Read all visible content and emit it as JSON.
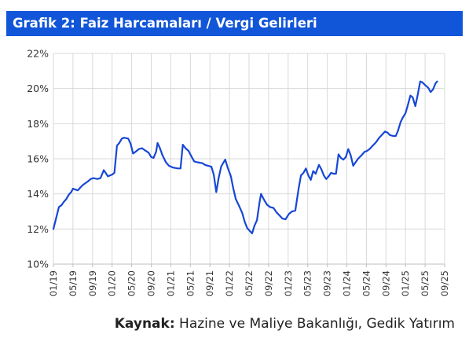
{
  "header": {
    "title": "Grafik 2: Faiz Harcamaları / Vergi Gelirleri"
  },
  "source": {
    "label": "Kaynak:",
    "text": "Hazine ve Maliye Bakanlığı, Gedik Yatırım"
  },
  "colors": {
    "header_bg": "#1155d8",
    "line": "#1747d6",
    "grid": "#d9d9d9",
    "axis": "#bfbfbf",
    "text": "#333333"
  },
  "chart_data": {
    "type": "line",
    "title": "",
    "xlabel": "",
    "ylabel": "",
    "y_unit": "%",
    "ylim": [
      10,
      22
    ],
    "grid": true,
    "y_ticks": [
      "22%",
      "20%",
      "18%",
      "16%",
      "14%",
      "12%",
      "10%"
    ],
    "x_ticks": [
      "01/19",
      "05/19",
      "09/19",
      "01/20",
      "05/20",
      "09/20",
      "01/21",
      "05/21",
      "09/21",
      "01/22",
      "05/22",
      "09/22",
      "01/23",
      "05/23",
      "09/23",
      "01/24",
      "05/24",
      "09/24",
      "01/25",
      "05/25",
      "09/25"
    ],
    "x_start": "2019-01",
    "x_end": "2025-09",
    "series": [
      {
        "name": "",
        "points": [
          [
            "2019-01-01",
            12.0
          ],
          [
            "2019-01-20",
            12.7
          ],
          [
            "2019-02-05",
            13.25
          ],
          [
            "2019-02-20",
            13.35
          ],
          [
            "2019-03-05",
            13.55
          ],
          [
            "2019-03-20",
            13.7
          ],
          [
            "2019-04-05",
            13.95
          ],
          [
            "2019-04-20",
            14.1
          ],
          [
            "2019-05-01",
            14.3
          ],
          [
            "2019-05-15",
            14.25
          ],
          [
            "2019-06-01",
            14.2
          ],
          [
            "2019-06-15",
            14.35
          ],
          [
            "2019-07-01",
            14.5
          ],
          [
            "2019-08-01",
            14.7
          ],
          [
            "2019-08-20",
            14.85
          ],
          [
            "2019-09-05",
            14.9
          ],
          [
            "2019-10-01",
            14.85
          ],
          [
            "2019-10-20",
            14.9
          ],
          [
            "2019-11-10",
            15.35
          ],
          [
            "2019-11-25",
            15.15
          ],
          [
            "2019-12-05",
            15.0
          ],
          [
            "2020-01-01",
            15.1
          ],
          [
            "2020-01-15",
            15.2
          ],
          [
            "2020-02-01",
            16.75
          ],
          [
            "2020-02-15",
            16.9
          ],
          [
            "2020-03-01",
            17.15
          ],
          [
            "2020-03-15",
            17.2
          ],
          [
            "2020-04-10",
            17.15
          ],
          [
            "2020-04-25",
            16.85
          ],
          [
            "2020-05-10",
            16.3
          ],
          [
            "2020-05-25",
            16.4
          ],
          [
            "2020-06-15",
            16.55
          ],
          [
            "2020-07-05",
            16.6
          ],
          [
            "2020-07-20",
            16.5
          ],
          [
            "2020-08-15",
            16.35
          ],
          [
            "2020-09-01",
            16.1
          ],
          [
            "2020-09-15",
            16.05
          ],
          [
            "2020-10-01",
            16.4
          ],
          [
            "2020-10-10",
            16.9
          ],
          [
            "2020-10-25",
            16.6
          ],
          [
            "2020-11-10",
            16.2
          ],
          [
            "2020-12-01",
            15.8
          ],
          [
            "2020-12-20",
            15.6
          ],
          [
            "2021-01-15",
            15.5
          ],
          [
            "2021-02-15",
            15.45
          ],
          [
            "2021-03-01",
            15.45
          ],
          [
            "2021-03-15",
            16.8
          ],
          [
            "2021-04-01",
            16.6
          ],
          [
            "2021-04-20",
            16.45
          ],
          [
            "2021-05-10",
            16.1
          ],
          [
            "2021-05-25",
            15.85
          ],
          [
            "2021-06-15",
            15.8
          ],
          [
            "2021-07-15",
            15.75
          ],
          [
            "2021-08-01",
            15.65
          ],
          [
            "2021-08-20",
            15.6
          ],
          [
            "2021-09-10",
            15.55
          ],
          [
            "2021-09-25",
            15.1
          ],
          [
            "2021-10-10",
            14.1
          ],
          [
            "2021-10-25",
            14.9
          ],
          [
            "2021-11-10",
            15.55
          ],
          [
            "2021-11-25",
            15.8
          ],
          [
            "2021-12-05",
            15.95
          ],
          [
            "2021-12-20",
            15.5
          ],
          [
            "2022-01-10",
            15.0
          ],
          [
            "2022-01-25",
            14.3
          ],
          [
            "2022-02-10",
            13.7
          ],
          [
            "2022-03-01",
            13.3
          ],
          [
            "2022-03-20",
            12.9
          ],
          [
            "2022-04-05",
            12.4
          ],
          [
            "2022-04-20",
            12.05
          ],
          [
            "2022-05-05",
            11.9
          ],
          [
            "2022-05-20",
            11.75
          ],
          [
            "2022-06-05",
            12.2
          ],
          [
            "2022-06-20",
            12.5
          ],
          [
            "2022-07-05",
            13.5
          ],
          [
            "2022-07-15",
            14.0
          ],
          [
            "2022-08-01",
            13.7
          ],
          [
            "2022-08-20",
            13.4
          ],
          [
            "2022-09-10",
            13.25
          ],
          [
            "2022-10-01",
            13.2
          ],
          [
            "2022-10-20",
            12.95
          ],
          [
            "2022-11-05",
            12.8
          ],
          [
            "2022-11-25",
            12.6
          ],
          [
            "2022-12-15",
            12.55
          ],
          [
            "2023-01-05",
            12.85
          ],
          [
            "2023-01-25",
            13.0
          ],
          [
            "2023-02-15",
            13.05
          ],
          [
            "2023-03-05",
            14.3
          ],
          [
            "2023-03-20",
            15.05
          ],
          [
            "2023-04-05",
            15.2
          ],
          [
            "2023-04-20",
            15.45
          ],
          [
            "2023-05-05",
            15.05
          ],
          [
            "2023-05-20",
            14.8
          ],
          [
            "2023-06-05",
            15.3
          ],
          [
            "2023-06-20",
            15.15
          ],
          [
            "2023-07-10",
            15.65
          ],
          [
            "2023-07-25",
            15.4
          ],
          [
            "2023-08-10",
            15.05
          ],
          [
            "2023-08-25",
            14.85
          ],
          [
            "2023-09-10",
            15.0
          ],
          [
            "2023-09-25",
            15.2
          ],
          [
            "2023-10-10",
            15.15
          ],
          [
            "2023-10-25",
            15.15
          ],
          [
            "2023-11-10",
            16.25
          ],
          [
            "2023-11-25",
            16.05
          ],
          [
            "2023-12-10",
            15.95
          ],
          [
            "2023-12-25",
            16.1
          ],
          [
            "2024-01-10",
            16.55
          ],
          [
            "2024-01-25",
            16.2
          ],
          [
            "2024-02-10",
            15.6
          ],
          [
            "2024-02-25",
            15.8
          ],
          [
            "2024-03-10",
            16.0
          ],
          [
            "2024-04-01",
            16.2
          ],
          [
            "2024-04-20",
            16.4
          ],
          [
            "2024-05-05",
            16.45
          ],
          [
            "2024-05-20",
            16.55
          ],
          [
            "2024-06-10",
            16.75
          ],
          [
            "2024-07-01",
            16.95
          ],
          [
            "2024-07-20",
            17.2
          ],
          [
            "2024-08-10",
            17.4
          ],
          [
            "2024-08-25",
            17.55
          ],
          [
            "2024-09-10",
            17.5
          ],
          [
            "2024-09-25",
            17.35
          ],
          [
            "2024-10-15",
            17.3
          ],
          [
            "2024-11-01",
            17.3
          ],
          [
            "2024-11-15",
            17.6
          ],
          [
            "2024-12-01",
            18.1
          ],
          [
            "2024-12-15",
            18.35
          ],
          [
            "2025-01-01",
            18.6
          ],
          [
            "2025-01-15",
            19.05
          ],
          [
            "2025-02-01",
            19.6
          ],
          [
            "2025-02-15",
            19.5
          ],
          [
            "2025-03-01",
            19.0
          ],
          [
            "2025-03-15",
            19.6
          ],
          [
            "2025-04-01",
            20.4
          ],
          [
            "2025-04-15",
            20.35
          ],
          [
            "2025-05-01",
            20.2
          ],
          [
            "2025-05-20",
            20.05
          ],
          [
            "2025-06-05",
            19.8
          ],
          [
            "2025-06-20",
            19.95
          ],
          [
            "2025-07-05",
            20.3
          ],
          [
            "2025-07-15",
            20.4
          ]
        ]
      }
    ]
  }
}
